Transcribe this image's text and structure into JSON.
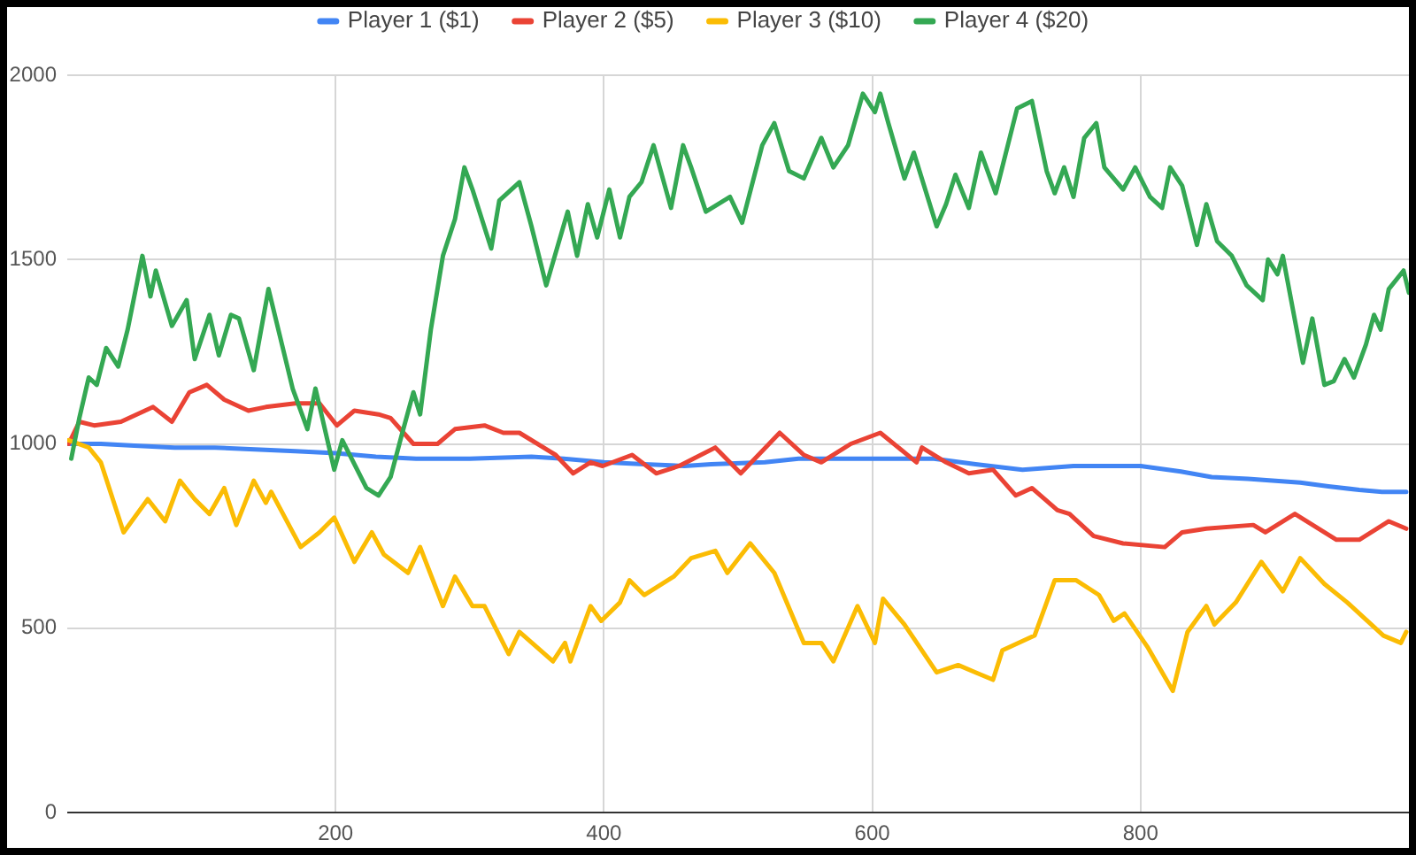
{
  "chart_data": {
    "type": "line",
    "xlim": [
      0,
      1000
    ],
    "xticks": [
      200,
      400,
      600,
      800
    ],
    "ylim": [
      0,
      2000
    ],
    "yticks": [
      0,
      500,
      1000,
      1500,
      2000
    ],
    "grid": true,
    "legend": "top",
    "marker": "none",
    "series": [
      {
        "name": "Player 1 ($1)",
        "color": "#4285f4",
        "x": [
          1,
          25,
          50,
          80,
          110,
          140,
          170,
          200,
          230,
          260,
          300,
          346,
          370,
          400,
          430,
          460,
          480,
          520,
          545,
          580,
          620,
          646,
          677,
          712,
          750,
          787,
          800,
          830,
          853,
          880,
          919,
          940,
          963,
          980,
          998
        ],
        "values": [
          1000,
          1000,
          995,
          990,
          990,
          985,
          980,
          975,
          965,
          960,
          960,
          965,
          960,
          950,
          945,
          940,
          945,
          950,
          960,
          960,
          960,
          960,
          945,
          930,
          940,
          940,
          940,
          925,
          910,
          905,
          895,
          885,
          875,
          870,
          870
        ]
      },
      {
        "name": "Player 2 ($5)",
        "color": "#ea4335",
        "x": [
          1,
          9,
          20,
          40,
          64,
          78,
          91,
          104,
          117,
          135,
          148,
          170,
          188,
          201,
          214,
          232,
          241,
          258,
          276,
          289,
          311,
          325,
          337,
          364,
          377,
          390,
          399,
          421,
          439,
          456,
          483,
          502,
          531,
          549,
          562,
          584,
          606,
          633,
          637,
          655,
          672,
          690,
          707,
          719,
          738,
          747,
          765,
          787,
          818,
          831,
          849,
          884,
          893,
          915,
          946,
          963,
          985,
          998
        ],
        "values": [
          1000,
          1060,
          1050,
          1060,
          1100,
          1060,
          1140,
          1160,
          1120,
          1090,
          1100,
          1110,
          1110,
          1050,
          1090,
          1080,
          1070,
          1000,
          1000,
          1040,
          1050,
          1030,
          1030,
          970,
          920,
          950,
          940,
          970,
          920,
          940,
          990,
          920,
          1030,
          970,
          950,
          1000,
          1030,
          950,
          990,
          950,
          920,
          930,
          860,
          880,
          820,
          810,
          750,
          730,
          720,
          760,
          770,
          780,
          760,
          810,
          740,
          740,
          790,
          770
        ]
      },
      {
        "name": "Player 3 ($10)",
        "color": "#fbbc04",
        "x": [
          1,
          16,
          25,
          42,
          60,
          73,
          84,
          95,
          106,
          117,
          126,
          139,
          148,
          152,
          174,
          188,
          199,
          214,
          227,
          236,
          254,
          263,
          280,
          289,
          302,
          311,
          329,
          337,
          362,
          371,
          375,
          390,
          398,
          412,
          419,
          430,
          452,
          465,
          483,
          492,
          509,
          527,
          549,
          562,
          571,
          589,
          602,
          608,
          624,
          648,
          664,
          677,
          690,
          697,
          721,
          736,
          752,
          769,
          780,
          788,
          805,
          824,
          835,
          849,
          855,
          871,
          890,
          906,
          919,
          937,
          954,
          963,
          981,
          994,
          998
        ],
        "values": [
          1010,
          990,
          950,
          760,
          850,
          790,
          900,
          850,
          810,
          880,
          780,
          900,
          840,
          870,
          720,
          760,
          800,
          680,
          760,
          700,
          650,
          720,
          560,
          640,
          560,
          560,
          430,
          490,
          410,
          460,
          410,
          560,
          520,
          570,
          630,
          590,
          640,
          690,
          710,
          650,
          730,
          650,
          460,
          460,
          410,
          560,
          460,
          580,
          510,
          380,
          400,
          380,
          360,
          440,
          480,
          630,
          630,
          590,
          520,
          540,
          450,
          330,
          490,
          560,
          510,
          570,
          680,
          600,
          690,
          620,
          570,
          540,
          480,
          460,
          490
        ]
      },
      {
        "name": "Player 4 ($20)",
        "color": "#34a853",
        "x": [
          3,
          9,
          16,
          22,
          29,
          38,
          45,
          56,
          62,
          66,
          78,
          89,
          95,
          106,
          113,
          122,
          128,
          139,
          150,
          168,
          179,
          185,
          199,
          205,
          223,
          232,
          241,
          249,
          258,
          263,
          271,
          280,
          289,
          296,
          302,
          316,
          322,
          337,
          346,
          357,
          373,
          380,
          388,
          395,
          404,
          412,
          419,
          428,
          437,
          450,
          459,
          465,
          476,
          494,
          503,
          518,
          527,
          538,
          549,
          562,
          571,
          582,
          593,
          602,
          606,
          612,
          624,
          631,
          648,
          655,
          662,
          672,
          681,
          692,
          708,
          719,
          730,
          736,
          743,
          750,
          758,
          767,
          773,
          787,
          796,
          807,
          816,
          822,
          831,
          842,
          849,
          857,
          868,
          879,
          891,
          895,
          902,
          906,
          921,
          928,
          937,
          944,
          952,
          959,
          968,
          974,
          979,
          985,
          996,
          1000
        ],
        "values": [
          960,
          1070,
          1180,
          1160,
          1260,
          1210,
          1310,
          1510,
          1400,
          1470,
          1320,
          1390,
          1230,
          1350,
          1240,
          1350,
          1340,
          1200,
          1420,
          1150,
          1040,
          1150,
          930,
          1010,
          880,
          860,
          910,
          1020,
          1140,
          1080,
          1310,
          1510,
          1610,
          1750,
          1690,
          1530,
          1660,
          1710,
          1590,
          1430,
          1630,
          1510,
          1650,
          1560,
          1690,
          1560,
          1670,
          1710,
          1810,
          1640,
          1810,
          1750,
          1630,
          1670,
          1600,
          1810,
          1870,
          1740,
          1720,
          1830,
          1750,
          1810,
          1950,
          1900,
          1950,
          1870,
          1720,
          1790,
          1590,
          1650,
          1730,
          1640,
          1790,
          1680,
          1910,
          1930,
          1740,
          1680,
          1750,
          1670,
          1830,
          1870,
          1750,
          1690,
          1750,
          1670,
          1640,
          1750,
          1700,
          1540,
          1650,
          1550,
          1510,
          1430,
          1390,
          1500,
          1460,
          1510,
          1220,
          1340,
          1160,
          1170,
          1230,
          1180,
          1270,
          1350,
          1310,
          1420,
          1470,
          1410
        ]
      }
    ]
  }
}
